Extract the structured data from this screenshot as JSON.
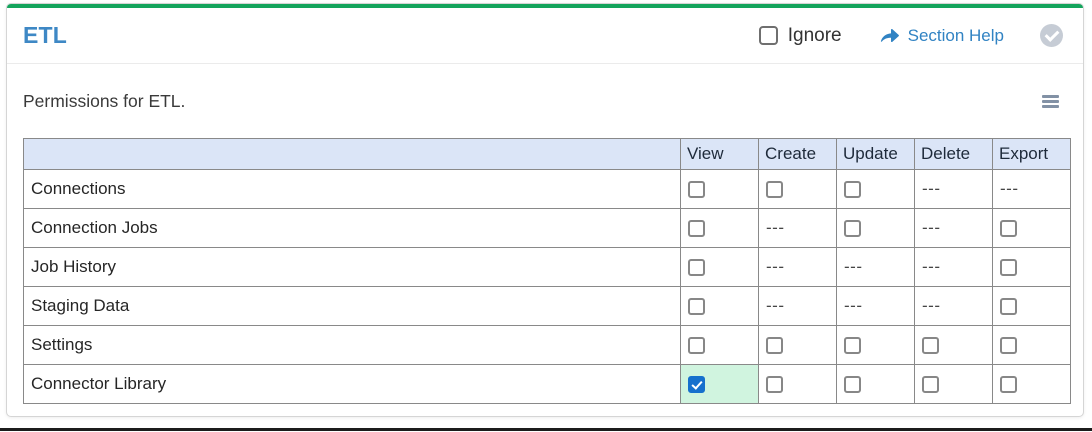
{
  "colors": {
    "accent_green": "#14a45c",
    "title_blue": "#3e88c5",
    "link_blue": "#3183c3",
    "header_row_bg": "#dbe5f7",
    "checked_cell_bg": "#d0f4df",
    "checkbox_checked_bg": "#1670cd",
    "hamburger_gray": "#8291a5",
    "check_circle_gray": "#c6ccd5"
  },
  "header": {
    "title": "ETL",
    "ignore_label": "Ignore",
    "section_help_label": "Section Help"
  },
  "subheader": {
    "description": "Permissions for ETL."
  },
  "table": {
    "columns": [
      "View",
      "Create",
      "Update",
      "Delete",
      "Export"
    ],
    "empty_cell_text": "---",
    "rows": [
      {
        "label": "Connections",
        "cells": [
          "unchecked",
          "unchecked",
          "unchecked",
          "none",
          "none"
        ]
      },
      {
        "label": "Connection Jobs",
        "cells": [
          "unchecked",
          "none",
          "unchecked",
          "none",
          "unchecked"
        ]
      },
      {
        "label": "Job History",
        "cells": [
          "unchecked",
          "none",
          "none",
          "none",
          "unchecked"
        ]
      },
      {
        "label": "Staging Data",
        "cells": [
          "unchecked",
          "none",
          "none",
          "none",
          "unchecked"
        ]
      },
      {
        "label": "Settings",
        "cells": [
          "unchecked",
          "unchecked",
          "unchecked",
          "unchecked",
          "unchecked"
        ]
      },
      {
        "label": "Connector Library",
        "cells": [
          "checked",
          "unchecked",
          "unchecked",
          "unchecked",
          "unchecked"
        ]
      }
    ]
  }
}
